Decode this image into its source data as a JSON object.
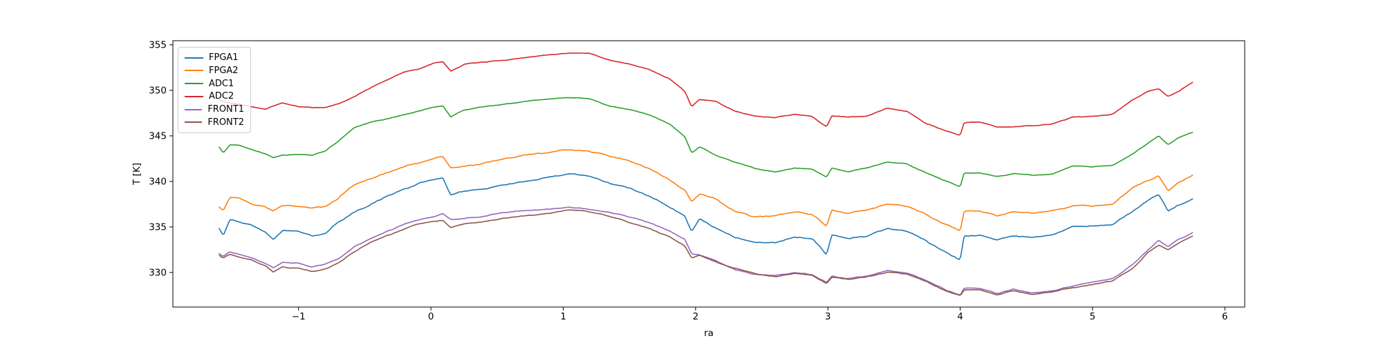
{
  "axes": {
    "x_ticks": [
      -1,
      0,
      1,
      2,
      3,
      4,
      5,
      6
    ],
    "x_tick_labels": [
      "−1",
      "0",
      "1",
      "2",
      "3",
      "4",
      "5",
      "6"
    ],
    "y_ticks": [
      330,
      335,
      340,
      345,
      350,
      355
    ],
    "y_tick_labels": [
      "330",
      "335",
      "340",
      "345",
      "350",
      "355"
    ]
  },
  "chart_data": {
    "type": "line",
    "title": "",
    "xlabel": "ra",
    "ylabel": "T [K]",
    "xlim": [
      -1.95,
      6.15
    ],
    "ylim": [
      326.2,
      355.45
    ],
    "grid": false,
    "legend_position": "upper-left",
    "x": [
      -1.6,
      -1.57,
      -1.52,
      -1.45,
      -1.35,
      -1.25,
      -1.19,
      -1.12,
      -1.0,
      -0.9,
      -0.8,
      -0.7,
      -0.58,
      -0.45,
      -0.32,
      -0.2,
      -0.08,
      0.02,
      0.09,
      0.15,
      0.25,
      0.4,
      0.55,
      0.72,
      0.9,
      1.05,
      1.2,
      1.35,
      1.5,
      1.65,
      1.8,
      1.92,
      1.97,
      2.03,
      2.15,
      2.3,
      2.45,
      2.6,
      2.75,
      2.88,
      2.99,
      3.03,
      3.15,
      3.3,
      3.45,
      3.6,
      3.75,
      3.9,
      4.0,
      4.03,
      4.15,
      4.28,
      4.4,
      4.55,
      4.7,
      4.85,
      5.0,
      5.15,
      5.3,
      5.42,
      5.5,
      5.57,
      5.65,
      5.76
    ],
    "series": [
      {
        "name": "FPGA1",
        "color": "#1f77b4",
        "values": [
          334.8,
          334.0,
          335.8,
          335.6,
          335.2,
          334.4,
          333.6,
          334.6,
          334.55,
          334.0,
          334.3,
          335.5,
          336.6,
          337.5,
          338.5,
          339.1,
          339.9,
          340.2,
          340.4,
          338.5,
          338.9,
          339.2,
          339.6,
          340.0,
          340.5,
          340.85,
          340.6,
          339.8,
          339.3,
          338.4,
          337.2,
          336.2,
          334.5,
          335.9,
          334.9,
          333.9,
          333.3,
          333.25,
          333.9,
          333.75,
          332.0,
          334.2,
          333.7,
          334.0,
          334.9,
          334.5,
          333.4,
          332.2,
          331.4,
          334.05,
          334.1,
          333.6,
          334.05,
          333.85,
          334.15,
          335.05,
          335.1,
          335.2,
          336.7,
          337.9,
          338.6,
          336.8,
          337.4,
          338.1
        ]
      },
      {
        "name": "FPGA2",
        "color": "#ff7f0e",
        "values": [
          337.2,
          336.8,
          338.3,
          338.2,
          337.5,
          337.2,
          336.8,
          337.3,
          337.3,
          337.1,
          337.2,
          338.2,
          339.6,
          340.3,
          341.0,
          341.6,
          342.1,
          342.55,
          342.7,
          341.5,
          341.65,
          342.0,
          342.45,
          342.9,
          343.2,
          343.5,
          343.3,
          342.8,
          342.2,
          341.4,
          340.2,
          339.0,
          337.75,
          338.6,
          338.1,
          336.7,
          336.1,
          336.2,
          336.65,
          336.4,
          335.05,
          336.9,
          336.5,
          336.9,
          337.55,
          337.25,
          336.3,
          335.2,
          334.55,
          336.75,
          336.7,
          336.25,
          336.7,
          336.5,
          336.8,
          337.35,
          337.35,
          337.55,
          339.3,
          340.1,
          340.6,
          339.0,
          339.9,
          340.7
        ]
      },
      {
        "name": "ADC1",
        "color": "#2ca02c",
        "values": [
          343.75,
          343.15,
          344.0,
          344.0,
          343.45,
          343.0,
          342.6,
          342.9,
          343.0,
          342.85,
          343.3,
          344.4,
          345.9,
          346.5,
          346.9,
          347.3,
          347.8,
          348.15,
          348.3,
          347.1,
          347.85,
          348.2,
          348.5,
          348.8,
          349.05,
          349.2,
          349.1,
          348.3,
          347.9,
          347.3,
          346.3,
          344.9,
          343.15,
          343.8,
          342.9,
          342.1,
          341.4,
          341.0,
          341.5,
          341.35,
          340.5,
          341.5,
          341.05,
          341.5,
          342.15,
          341.9,
          340.9,
          340.0,
          339.4,
          340.9,
          340.9,
          340.5,
          340.85,
          340.7,
          340.8,
          341.7,
          341.6,
          341.75,
          343.0,
          344.2,
          345.0,
          344.05,
          344.8,
          345.4
        ]
      },
      {
        "name": "ADC2",
        "color": "#d62728",
        "values": [
          349.0,
          348.75,
          348.6,
          348.5,
          348.2,
          347.9,
          348.3,
          348.65,
          348.2,
          348.1,
          348.1,
          348.5,
          349.3,
          350.3,
          351.2,
          352.0,
          352.35,
          353.0,
          353.2,
          352.1,
          352.85,
          353.1,
          353.3,
          353.6,
          353.9,
          354.1,
          354.05,
          353.3,
          352.9,
          352.3,
          351.3,
          349.9,
          348.2,
          349.0,
          348.8,
          347.7,
          347.15,
          347.0,
          347.4,
          347.15,
          346.0,
          347.2,
          347.05,
          347.2,
          348.05,
          347.7,
          346.3,
          345.5,
          345.05,
          346.45,
          346.55,
          345.95,
          346.0,
          346.1,
          346.3,
          347.05,
          347.15,
          347.4,
          348.9,
          349.9,
          350.2,
          349.3,
          349.9,
          350.9
        ]
      },
      {
        "name": "FRONT1",
        "color": "#9467bd",
        "values": [
          332.1,
          331.8,
          332.3,
          332.0,
          331.6,
          331.0,
          330.5,
          331.1,
          331.0,
          330.6,
          330.9,
          331.5,
          332.8,
          333.8,
          334.6,
          335.3,
          335.85,
          336.1,
          336.5,
          335.8,
          335.95,
          336.15,
          336.6,
          336.8,
          336.95,
          337.2,
          336.9,
          336.6,
          336.1,
          335.5,
          334.6,
          333.6,
          332.0,
          331.9,
          331.3,
          330.3,
          329.8,
          329.65,
          330.0,
          329.8,
          328.9,
          329.6,
          329.3,
          329.6,
          330.2,
          329.95,
          329.1,
          328.0,
          327.55,
          328.3,
          328.25,
          327.7,
          328.15,
          327.7,
          328.0,
          328.5,
          328.9,
          329.3,
          330.8,
          332.5,
          333.5,
          332.8,
          333.6,
          334.4
        ]
      },
      {
        "name": "FRONT2",
        "color": "#8c564b",
        "values": [
          331.9,
          331.6,
          332.05,
          331.7,
          331.35,
          330.7,
          330.0,
          330.6,
          330.45,
          330.1,
          330.4,
          331.0,
          332.3,
          333.3,
          334.1,
          334.8,
          335.4,
          335.6,
          335.75,
          334.95,
          335.35,
          335.55,
          335.95,
          336.25,
          336.5,
          336.9,
          336.7,
          336.2,
          335.5,
          334.8,
          333.9,
          332.9,
          331.6,
          331.9,
          331.15,
          330.4,
          329.9,
          329.55,
          329.9,
          329.7,
          328.8,
          329.5,
          329.2,
          329.5,
          330.05,
          329.8,
          329.0,
          327.9,
          327.45,
          328.1,
          328.1,
          327.55,
          328.0,
          327.55,
          327.9,
          328.35,
          328.7,
          329.1,
          330.4,
          332.2,
          333.0,
          332.5,
          333.2,
          334.0
        ]
      }
    ]
  }
}
